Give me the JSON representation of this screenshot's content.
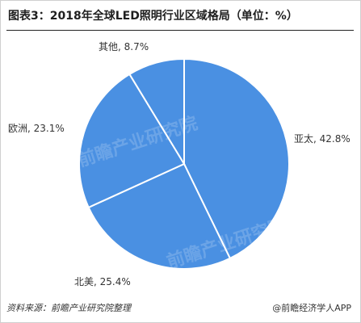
{
  "title": "图表3：2018年全球LED照明行业区域格局（单位：%）",
  "source": "资料来源：前瞻产业研究院整理",
  "brand": "@前瞻经济学人APP",
  "watermark": "前瞻产业研究院",
  "colors": {
    "pie": "#4a90e2",
    "edge": "#ffffff"
  },
  "chart_data": {
    "type": "pie",
    "title": "图表3：2018年全球LED照明行业区域格局（单位：%）",
    "categories": [
      "亚太",
      "北美",
      "欧洲",
      "其他"
    ],
    "values": [
      42.8,
      25.4,
      23.1,
      8.7
    ],
    "unit": "%",
    "labels": [
      "亚太, 42.8%",
      "北美, 25.4%",
      "欧洲, 23.1%",
      "其他, 8.7%"
    ]
  }
}
